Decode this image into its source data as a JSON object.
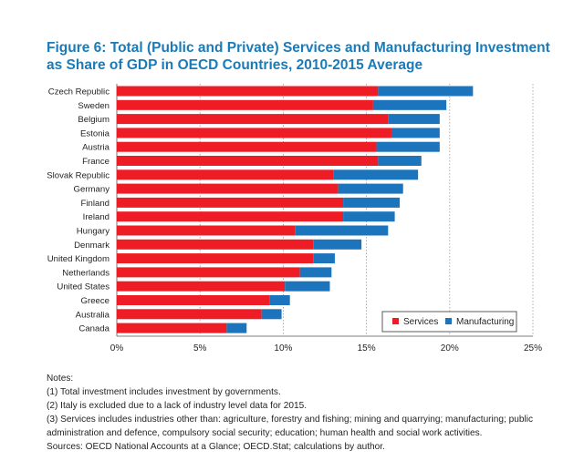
{
  "title": "Figure 6: Total (Public and Private) Services and Manufacturing Investment as Share of GDP in OECD Countries, 2010-2015 Average",
  "notes": {
    "heading": "Notes:",
    "lines": [
      "(1) Total investment includes investment by governments.",
      "(2) Italy is excluded due to a lack of industry level data for 2015.",
      "(3) Services includes industries other than: agriculture, forestry and fishing; mining and quarrying; manufacturing; public administration and defence, compulsory social security; education; human health and social work activities.",
      "Sources: OECD National Accounts at a Glance; OECD.Stat; calculations by author."
    ]
  },
  "colors": {
    "services": "#ee1c25",
    "manufacturing": "#1c75bc",
    "title": "#1a7bb8",
    "grid": "#9a9a9a"
  },
  "chart_data": {
    "type": "bar",
    "orientation": "horizontal",
    "stacked": true,
    "categories": [
      "Czech Republic",
      "Sweden",
      "Belgium",
      "Estonia",
      "Austria",
      "France",
      "Slovak Republic",
      "Germany",
      "Finland",
      "Ireland",
      "Hungary",
      "Denmark",
      "United Kingdom",
      "Netherlands",
      "United States",
      "Greece",
      "Australia",
      "Canada"
    ],
    "series": [
      {
        "name": "Services",
        "values": [
          15.7,
          15.4,
          16.3,
          16.5,
          15.6,
          15.7,
          13.0,
          13.3,
          13.6,
          13.6,
          10.7,
          11.8,
          11.8,
          11.0,
          10.1,
          9.2,
          8.7,
          6.6
        ]
      },
      {
        "name": "Manufacturing",
        "values": [
          5.7,
          4.4,
          3.1,
          2.9,
          3.8,
          2.6,
          5.1,
          3.9,
          3.4,
          3.1,
          5.6,
          2.9,
          1.3,
          1.9,
          2.7,
          1.2,
          1.2,
          1.2
        ]
      }
    ],
    "xlim": [
      0,
      25
    ],
    "xticks": [
      "0%",
      "5%",
      "10%",
      "15%",
      "20%",
      "25%"
    ],
    "grid": "vertical dotted",
    "legend": "bottom-right"
  }
}
